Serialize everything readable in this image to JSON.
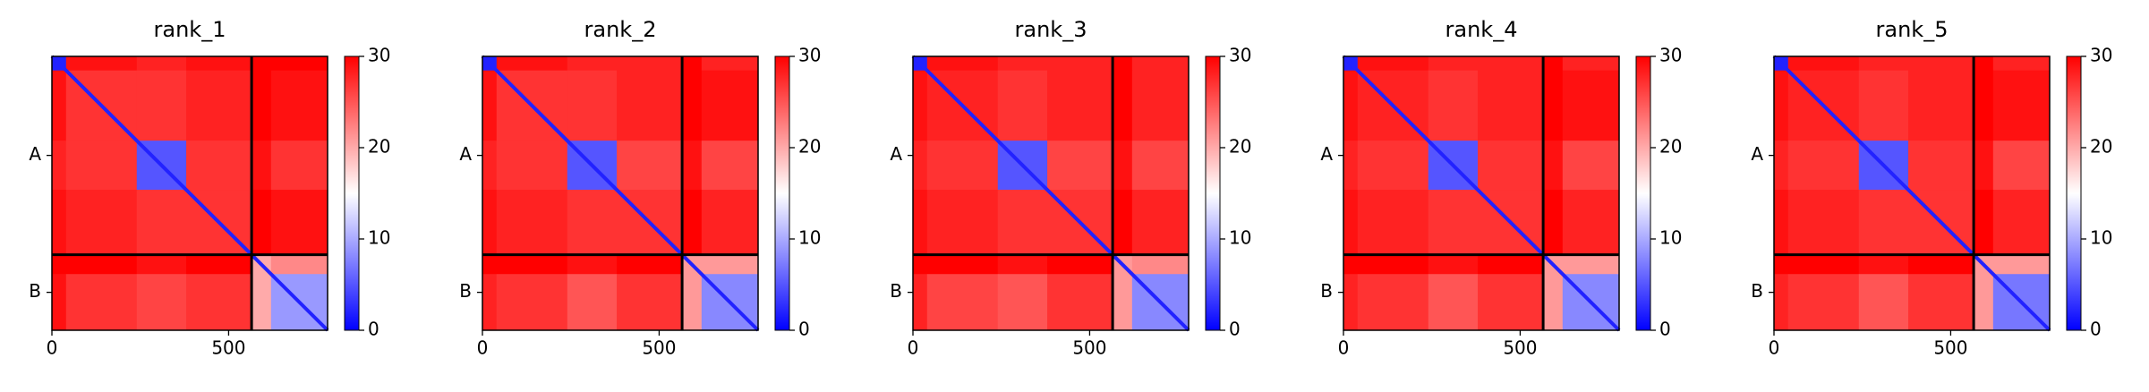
{
  "chart_data": [
    {
      "type": "heatmap",
      "title": "rank_1",
      "bins": [
        0,
        40,
        240,
        380,
        565,
        620,
        780
      ],
      "z": [
        [
          2,
          29,
          28,
          29,
          30,
          30
        ],
        [
          29,
          27,
          27,
          28,
          30,
          29
        ],
        [
          28,
          27,
          5,
          27,
          29,
          27
        ],
        [
          29,
          28,
          27,
          27,
          30,
          29
        ],
        [
          30,
          30,
          29,
          30,
          20,
          22
        ],
        [
          29,
          27,
          26,
          27,
          20,
          9
        ]
      ],
      "diagonal": 2,
      "chain_breaks": [
        565
      ],
      "xlim": [
        0,
        780
      ],
      "ylim": [
        780,
        0
      ],
      "xticks": [
        0,
        500
      ],
      "yticks": [
        {
          "value": 282,
          "label": "A"
        },
        {
          "value": 672,
          "label": "B"
        }
      ],
      "clim": [
        0,
        30
      ],
      "cticks": [
        0,
        10,
        20,
        30
      ],
      "colormap": [
        "#0000ff",
        "#ffffff",
        "#ff0000"
      ]
    },
    {
      "type": "heatmap",
      "title": "rank_2",
      "bins": [
        0,
        40,
        240,
        380,
        565,
        620,
        780
      ],
      "z": [
        [
          2,
          29,
          28,
          28,
          30,
          28
        ],
        [
          29,
          27,
          27,
          28,
          30,
          29
        ],
        [
          28,
          27,
          5,
          26,
          29,
          26
        ],
        [
          29,
          28,
          27,
          27,
          30,
          28
        ],
        [
          30,
          30,
          29,
          30,
          21,
          21
        ],
        [
          28,
          27,
          25,
          27,
          21,
          8
        ]
      ],
      "diagonal": 2,
      "chain_breaks": [
        565
      ],
      "xlim": [
        0,
        780
      ],
      "ylim": [
        780,
        0
      ],
      "xticks": [
        0,
        500
      ],
      "yticks": [
        {
          "value": 282,
          "label": "A"
        },
        {
          "value": 672,
          "label": "B"
        }
      ],
      "clim": [
        0,
        30
      ],
      "cticks": [
        0,
        10,
        20,
        30
      ],
      "colormap": [
        "#0000ff",
        "#ffffff",
        "#ff0000"
      ]
    },
    {
      "type": "heatmap",
      "title": "rank_3",
      "bins": [
        0,
        40,
        240,
        380,
        565,
        620,
        780
      ],
      "z": [
        [
          2,
          29,
          28,
          28,
          30,
          28
        ],
        [
          29,
          28,
          27,
          28,
          30,
          28
        ],
        [
          28,
          27,
          5,
          26,
          29,
          26
        ],
        [
          29,
          28,
          27,
          27,
          30,
          28
        ],
        [
          30,
          30,
          29,
          30,
          21,
          22
        ],
        [
          28,
          26,
          25,
          27,
          21,
          8
        ]
      ],
      "diagonal": 2,
      "chain_breaks": [
        565
      ],
      "xlim": [
        0,
        780
      ],
      "ylim": [
        780,
        0
      ],
      "xticks": [
        0,
        500
      ],
      "yticks": [
        {
          "value": 282,
          "label": "A"
        },
        {
          "value": 672,
          "label": "B"
        }
      ],
      "clim": [
        0,
        30
      ],
      "cticks": [
        0,
        10,
        20,
        30
      ],
      "colormap": [
        "#0000ff",
        "#ffffff",
        "#ff0000"
      ]
    },
    {
      "type": "heatmap",
      "title": "rank_4",
      "bins": [
        0,
        40,
        240,
        380,
        565,
        620,
        780
      ],
      "z": [
        [
          2,
          29,
          28,
          28,
          30,
          28
        ],
        [
          29,
          28,
          27,
          28,
          30,
          29
        ],
        [
          28,
          27,
          5,
          27,
          29,
          26
        ],
        [
          29,
          28,
          27,
          27,
          30,
          28
        ],
        [
          30,
          30,
          29,
          30,
          21,
          21
        ],
        [
          28,
          27,
          25,
          27,
          21,
          8
        ]
      ],
      "diagonal": 2,
      "chain_breaks": [
        565
      ],
      "xlim": [
        0,
        780
      ],
      "ylim": [
        780,
        0
      ],
      "xticks": [
        0,
        500
      ],
      "yticks": [
        {
          "value": 282,
          "label": "A"
        },
        {
          "value": 672,
          "label": "B"
        }
      ],
      "clim": [
        0,
        30
      ],
      "cticks": [
        0,
        10,
        20,
        30
      ],
      "colormap": [
        "#0000ff",
        "#ffffff",
        "#ff0000"
      ]
    },
    {
      "type": "heatmap",
      "title": "rank_5",
      "bins": [
        0,
        40,
        240,
        380,
        565,
        620,
        780
      ],
      "z": [
        [
          2,
          29,
          28,
          28,
          30,
          28
        ],
        [
          29,
          28,
          27,
          28,
          30,
          29
        ],
        [
          28,
          27,
          5,
          27,
          29,
          26
        ],
        [
          29,
          28,
          27,
          27,
          30,
          28
        ],
        [
          30,
          30,
          29,
          30,
          21,
          21
        ],
        [
          28,
          27,
          25,
          27,
          21,
          7
        ]
      ],
      "diagonal": 2,
      "chain_breaks": [
        565
      ],
      "xlim": [
        0,
        780
      ],
      "ylim": [
        780,
        0
      ],
      "xticks": [
        0,
        500
      ],
      "yticks": [
        {
          "value": 282,
          "label": "A"
        },
        {
          "value": 672,
          "label": "B"
        }
      ],
      "clim": [
        0,
        30
      ],
      "cticks": [
        0,
        10,
        20,
        30
      ],
      "colormap": [
        "#0000ff",
        "#ffffff",
        "#ff0000"
      ]
    }
  ]
}
